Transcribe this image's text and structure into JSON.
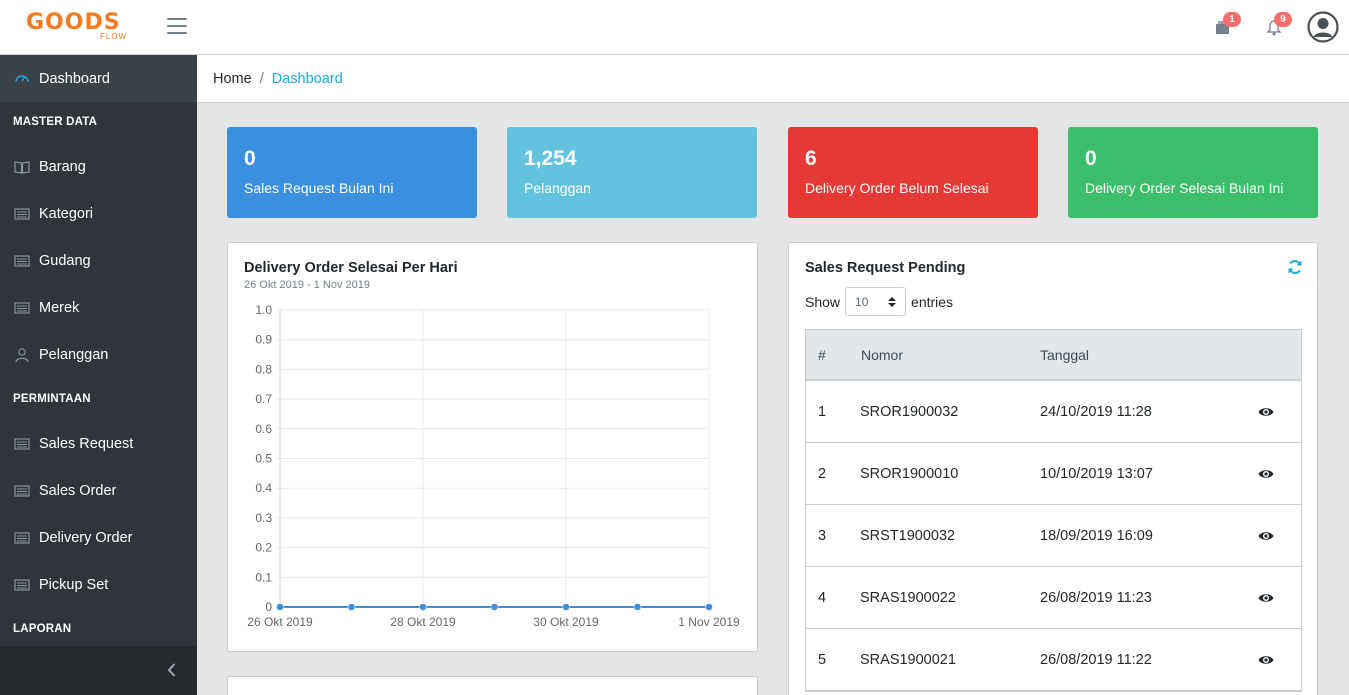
{
  "header": {
    "brand_main": "GOODS",
    "brand_sub": "FLOW",
    "cart_badge": "1",
    "bell_badge": "9"
  },
  "sidebar": {
    "items": [
      {
        "label": "Dashboard",
        "icon": "speedometer-icon"
      },
      {
        "label": "Barang",
        "icon": "book-icon"
      },
      {
        "label": "Kategori",
        "icon": "list-icon"
      },
      {
        "label": "Gudang",
        "icon": "list-icon"
      },
      {
        "label": "Merek",
        "icon": "list-icon"
      },
      {
        "label": "Pelanggan",
        "icon": "user-icon"
      },
      {
        "label": "Sales Request",
        "icon": "list-icon"
      },
      {
        "label": "Sales Order",
        "icon": "list-icon"
      },
      {
        "label": "Delivery Order",
        "icon": "list-icon"
      },
      {
        "label": "Pickup Set",
        "icon": "list-icon"
      }
    ],
    "sections": [
      "MASTER DATA",
      "PERMINTAAN",
      "LAPORAN"
    ]
  },
  "breadcrumb": {
    "home": "Home",
    "separator": "/",
    "current": "Dashboard"
  },
  "stats": [
    {
      "value": "0",
      "label": "Sales Request Bulan Ini",
      "color": "#3a8fde"
    },
    {
      "value": "1,254",
      "label": "Pelanggan",
      "color": "#63c2de"
    },
    {
      "value": "6",
      "label": "Delivery Order Belum Selesai",
      "color": "#e53935"
    },
    {
      "value": "0",
      "label": "Delivery Order Selesai Bulan Ini",
      "color": "#3cbf6b"
    }
  ],
  "chart_panel": {
    "title": "Delivery Order Selesai Per Hari",
    "subtitle": "26 Okt 2019 - 1 Nov 2019"
  },
  "chart_data": {
    "type": "line",
    "title": "Delivery Order Selesai Per Hari",
    "x": [
      "26 Okt 2019",
      "27 Okt 2019",
      "28 Okt 2019",
      "29 Okt 2019",
      "30 Okt 2019",
      "31 Okt 2019",
      "1 Nov 2019"
    ],
    "x_tick_labels": [
      "26 Okt 2019",
      "28 Okt 2019",
      "30 Okt 2019",
      "1 Nov 2019"
    ],
    "series": [
      {
        "values": [
          0,
          0,
          0,
          0,
          0,
          0,
          0
        ]
      }
    ],
    "y_ticks": [
      "1.0",
      "0.9",
      "0.8",
      "0.7",
      "0.6",
      "0.5",
      "0.4",
      "0.3",
      "0.2",
      "0.1",
      "0"
    ],
    "ylim": [
      0,
      1
    ],
    "grid": true,
    "line_color": "#3a8fde"
  },
  "sr_panel": {
    "title": "Sales Request Pending",
    "show_label": "Show",
    "entries_value": "10",
    "entries_label": "entries",
    "columns": [
      "#",
      "Nomor",
      "Tanggal"
    ],
    "rows": [
      {
        "no": "1",
        "nomor": "SROR1900032",
        "tanggal": "24/10/2019 11:28"
      },
      {
        "no": "2",
        "nomor": "SROR1900010",
        "tanggal": "10/10/2019 13:07"
      },
      {
        "no": "3",
        "nomor": "SRST1900032",
        "tanggal": "18/09/2019 16:09"
      },
      {
        "no": "4",
        "nomor": "SRAS1900022",
        "tanggal": "26/08/2019 11:23"
      },
      {
        "no": "5",
        "nomor": "SRAS1900021",
        "tanggal": "26/08/2019 11:22"
      }
    ]
  }
}
